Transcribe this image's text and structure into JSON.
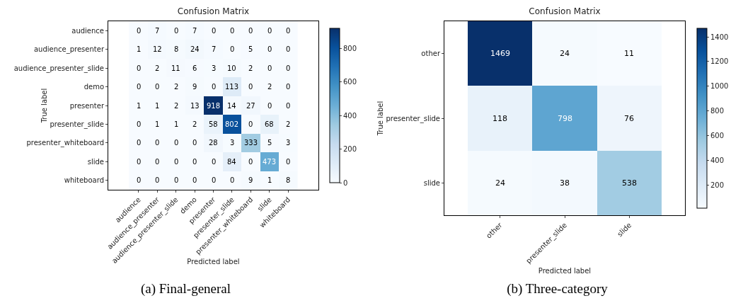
{
  "chart_data": [
    {
      "type": "heatmap",
      "title": "Confusion Matrix",
      "xlabel": "Predicted label",
      "ylabel": "True label",
      "categories": [
        "audience",
        "audience_presenter",
        "audience_presenter_slide",
        "demo",
        "presenter",
        "presenter_slide",
        "presenter_whiteboard",
        "slide",
        "whiteboard"
      ],
      "y_categories": [
        "audience",
        "audience_presenter",
        "audience_presenter_slide",
        "demo",
        "presenter",
        "presenter_slide",
        "presenter_whiteboard",
        "slide",
        "whiteboard"
      ],
      "cells": [
        [
          0,
          7,
          0,
          7,
          0,
          0,
          0,
          0,
          0
        ],
        [
          1,
          12,
          8,
          24,
          7,
          0,
          5,
          0,
          0
        ],
        [
          0,
          2,
          11,
          6,
          3,
          10,
          2,
          0,
          0
        ],
        [
          0,
          0,
          2,
          9,
          0,
          113,
          0,
          2,
          0
        ],
        [
          1,
          1,
          2,
          13,
          918,
          14,
          27,
          0,
          0
        ],
        [
          0,
          1,
          1,
          2,
          58,
          802,
          0,
          68,
          2
        ],
        [
          0,
          0,
          0,
          0,
          28,
          3,
          333,
          5,
          3
        ],
        [
          0,
          0,
          0,
          0,
          0,
          84,
          0,
          473,
          0
        ],
        [
          0,
          0,
          0,
          0,
          0,
          0,
          9,
          1,
          8
        ]
      ],
      "clim": [
        0,
        918
      ],
      "cticks": [
        0,
        200,
        400,
        600,
        800
      ],
      "data_labels": true,
      "annotations": [
        "(a) Final-general"
      ]
    },
    {
      "type": "heatmap",
      "title": "Confusion Matrix",
      "xlabel": "Predicted label",
      "ylabel": "True label",
      "categories": [
        "other",
        "presenter_slide",
        "slide"
      ],
      "y_categories": [
        "other",
        "presenter_slide",
        "slide"
      ],
      "cells": [
        [
          1469,
          24,
          11
        ],
        [
          118,
          798,
          76
        ],
        [
          24,
          38,
          538
        ]
      ],
      "clim": [
        11,
        1469
      ],
      "cticks": [
        200,
        400,
        600,
        800,
        1000,
        1200,
        1400
      ],
      "data_labels": true,
      "annotations": [
        "(b) Three-category"
      ]
    }
  ]
}
